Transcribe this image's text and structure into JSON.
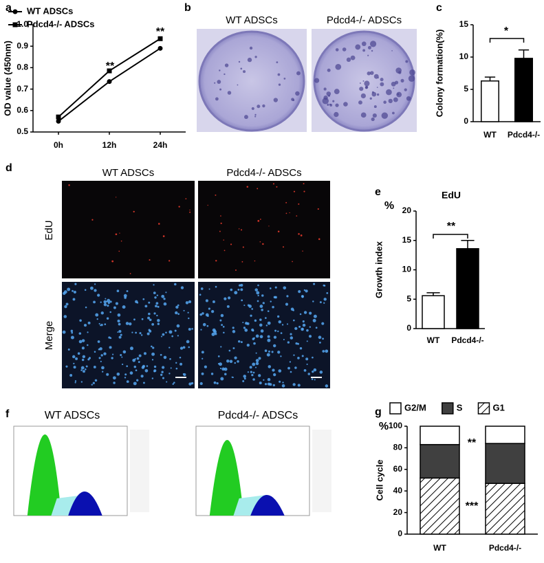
{
  "chart_data": [
    {
      "label": "a",
      "type": "line",
      "ylabel": "OD value (450nm)",
      "categories": [
        "0h",
        "12h",
        "24h"
      ],
      "series": [
        {
          "name": "WT ADSCs",
          "color": "#000000",
          "marker": "circle",
          "values": [
            0.55,
            0.735,
            0.89
          ]
        },
        {
          "name": "Pdcd4-/- ADSCs",
          "color": "#000000",
          "marker": "square",
          "values": [
            0.57,
            0.785,
            0.935
          ]
        }
      ],
      "ylim": [
        0.5,
        1
      ],
      "yticks": [
        0.5,
        0.6,
        0.7,
        0.8,
        0.9,
        {
          "value": 1,
          "label": "1.0"
        }
      ],
      "annotations": [
        "**",
        "**"
      ]
    },
    {
      "label": "c",
      "type": "bar",
      "ylabel": "Colony formation(%)",
      "categories": [
        "WT",
        "Pdcd4-/-"
      ],
      "values": [
        6.3,
        9.8
      ],
      "errors": [
        0.6,
        1.3
      ],
      "colors": [
        "#ffffff",
        "#000000"
      ],
      "ylim": [
        0,
        15
      ],
      "yticks": [
        0,
        5,
        10,
        15
      ],
      "annotations": [
        "*"
      ]
    },
    {
      "label": "e",
      "type": "bar",
      "title": "EdU",
      "yunit": "%",
      "ylabel": "Growth index",
      "categories": [
        "WT",
        "Pdcd4-/-"
      ],
      "values": [
        5.6,
        13.6
      ],
      "errors": [
        0.5,
        1.4
      ],
      "colors": [
        "#ffffff",
        "#000000"
      ],
      "ylim": [
        0,
        20
      ],
      "yticks": [
        0,
        5,
        10,
        15,
        20
      ],
      "annotations": [
        "**"
      ]
    },
    {
      "label": "g",
      "type": "bar",
      "stacked": true,
      "yunit": "%",
      "ylabel": "Cell cycle",
      "categories": [
        "WT",
        "Pdcd4-/-"
      ],
      "series": [
        {
          "name": "G1",
          "color": "#ffffff",
          "hatch": true,
          "values": [
            52,
            47
          ]
        },
        {
          "name": "S",
          "color": "#404040",
          "values": [
            31,
            37
          ]
        },
        {
          "name": "G2/M",
          "color": "#ffffff",
          "values": [
            17,
            16
          ]
        }
      ],
      "ylim": [
        0,
        100
      ],
      "yticks": [
        0,
        20,
        40,
        60,
        80,
        100
      ],
      "annotations": [
        "**",
        "***"
      ]
    }
  ],
  "images": [
    {
      "label": "b",
      "titles": [
        "WT ADSCs",
        "Pdcd4-/- ADSCs"
      ]
    },
    {
      "label": "d",
      "titles": [
        "WT ADSCs",
        "Pdcd4-/- ADSCs"
      ],
      "rows": [
        "EdU",
        "Merge"
      ]
    },
    {
      "label": "f",
      "titles": [
        "WT ADSCs",
        "Pdcd4-/- ADSCs"
      ]
    }
  ]
}
